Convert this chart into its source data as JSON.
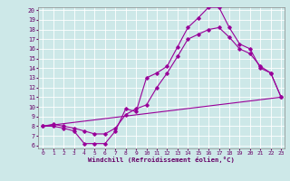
{
  "xlabel": "Windchill (Refroidissement éolien,°C)",
  "xlim": [
    0,
    23
  ],
  "ylim": [
    6,
    20
  ],
  "xticks": [
    0,
    1,
    2,
    3,
    4,
    5,
    6,
    7,
    8,
    9,
    10,
    11,
    12,
    13,
    14,
    15,
    16,
    17,
    18,
    19,
    20,
    21,
    22,
    23
  ],
  "yticks": [
    6,
    7,
    8,
    9,
    10,
    11,
    12,
    13,
    14,
    15,
    16,
    17,
    18,
    19,
    20
  ],
  "bg_color": "#cde8e8",
  "line_color": "#990099",
  "grid_color": "#ffffff",
  "curve1_x": [
    0,
    1,
    2,
    3,
    4,
    5,
    6,
    7,
    8,
    9,
    10,
    11,
    12,
    13,
    14,
    15,
    16,
    17,
    18,
    19,
    20,
    21,
    22,
    23
  ],
  "curve1_y": [
    8.0,
    8.0,
    7.8,
    7.5,
    6.2,
    6.2,
    6.2,
    7.5,
    9.8,
    9.5,
    13.0,
    13.5,
    14.2,
    16.2,
    18.2,
    19.2,
    20.3,
    20.3,
    18.2,
    16.5,
    16.0,
    14.0,
    13.5,
    11.0
  ],
  "curve2_x": [
    0,
    1,
    2,
    3,
    4,
    5,
    6,
    7,
    8,
    9,
    10,
    11,
    12,
    13,
    14,
    15,
    16,
    17,
    18,
    19,
    20,
    21,
    22,
    23
  ],
  "curve2_y": [
    8.0,
    8.2,
    8.0,
    7.8,
    7.5,
    7.2,
    7.2,
    7.8,
    9.2,
    9.8,
    10.2,
    12.0,
    13.5,
    15.2,
    17.0,
    17.5,
    18.0,
    18.2,
    17.2,
    16.0,
    15.5,
    14.2,
    13.5,
    11.0
  ],
  "curve3_x": [
    0,
    23
  ],
  "curve3_y": [
    8.0,
    11.0
  ]
}
